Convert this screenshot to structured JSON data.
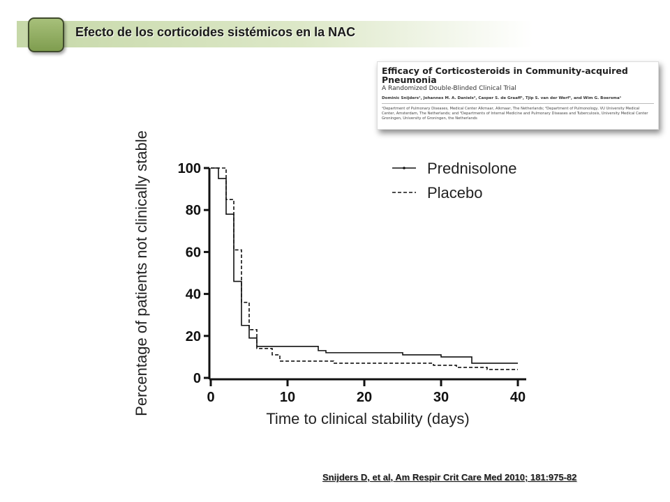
{
  "header": {
    "title": "Efecto de los corticoides sistémicos en la NAC"
  },
  "paper": {
    "title": "Efficacy of Corticosteroids in Community-acquired Pneumonia",
    "subtitle": "A Randomized Double-Blinded Clinical Trial",
    "authors": "Dominic Snijders¹, Johannes M. A. Daniels², Casper S. de Graaff¹, Tjip S. van der Werf³, and Wim G. Boersma¹",
    "affiliations": "¹Department of Pulmonary Diseases, Medical Center Alkmaar, Alkmaar, The Netherlands; ²Department of Pulmonology, VU University Medical Center, Amsterdam, The Netherlands; and ³Departments of Internal Medicine and Pulmonary Diseases and Tuberculosis, University Medical Center Groningen, University of Groningen, the Netherlands"
  },
  "chart_data": {
    "type": "line",
    "xlabel": "Time to clinical stability (days)",
    "ylabel": "Percentage of patients not clinically stable",
    "xlim": [
      0,
      40
    ],
    "ylim": [
      0,
      100
    ],
    "xticks": [
      "0",
      "10",
      "20",
      "30",
      "40"
    ],
    "yticks": [
      "0",
      "20",
      "40",
      "60",
      "80",
      "100"
    ],
    "grid": false,
    "legend_position": "top-right",
    "series": [
      {
        "name": "Prednisolone",
        "style": "solid",
        "steps": [
          [
            0,
            100
          ],
          [
            1,
            95
          ],
          [
            2,
            78
          ],
          [
            3,
            46
          ],
          [
            4,
            25
          ],
          [
            5,
            19
          ],
          [
            6,
            15
          ],
          [
            7,
            15
          ],
          [
            14,
            13
          ],
          [
            15,
            12
          ],
          [
            25,
            11
          ],
          [
            30,
            10
          ],
          [
            34,
            7
          ],
          [
            40,
            7
          ]
        ]
      },
      {
        "name": "Placebo",
        "style": "dashed",
        "steps": [
          [
            0,
            100
          ],
          [
            2,
            85
          ],
          [
            3,
            61
          ],
          [
            4,
            36
          ],
          [
            5,
            23
          ],
          [
            6,
            14
          ],
          [
            8,
            11
          ],
          [
            9,
            8
          ],
          [
            15,
            8
          ],
          [
            16,
            7
          ],
          [
            28,
            7
          ],
          [
            29,
            6
          ],
          [
            32,
            5
          ],
          [
            36,
            4
          ],
          [
            40,
            4
          ]
        ]
      }
    ]
  },
  "citation": "Snijders D, et al, Am Respir Crit Care Med 2010; 181:975-82"
}
